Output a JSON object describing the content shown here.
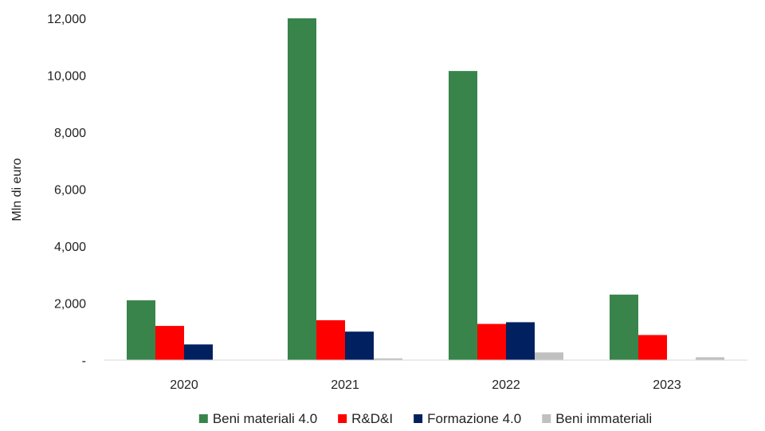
{
  "chart_data": {
    "type": "bar",
    "title": "",
    "xlabel": "",
    "ylabel": "Mln di euro",
    "categories": [
      "2020",
      "2021",
      "2022",
      "2023"
    ],
    "ylim": [
      0,
      12000
    ],
    "yticks": [
      0,
      2000,
      4000,
      6000,
      8000,
      10000,
      12000
    ],
    "ytick_labels": [
      "-",
      "2,000",
      "4,000",
      "6,000",
      "8,000",
      "10,000",
      "12,000"
    ],
    "grid": false,
    "legend_position": "bottom",
    "series": [
      {
        "name": "Beni materiali 4.0",
        "color": "#38844a",
        "values": [
          2100,
          12000,
          10150,
          2300
        ]
      },
      {
        "name": "R&D&I",
        "color": "#ff0000",
        "values": [
          1200,
          1400,
          1270,
          880
        ]
      },
      {
        "name": "Formazione 4.0",
        "color": "#012060",
        "values": [
          550,
          1000,
          1330,
          0
        ]
      },
      {
        "name": "Beni immateriali",
        "color": "#c0c0c0",
        "values": [
          0,
          60,
          270,
          100
        ]
      }
    ]
  }
}
